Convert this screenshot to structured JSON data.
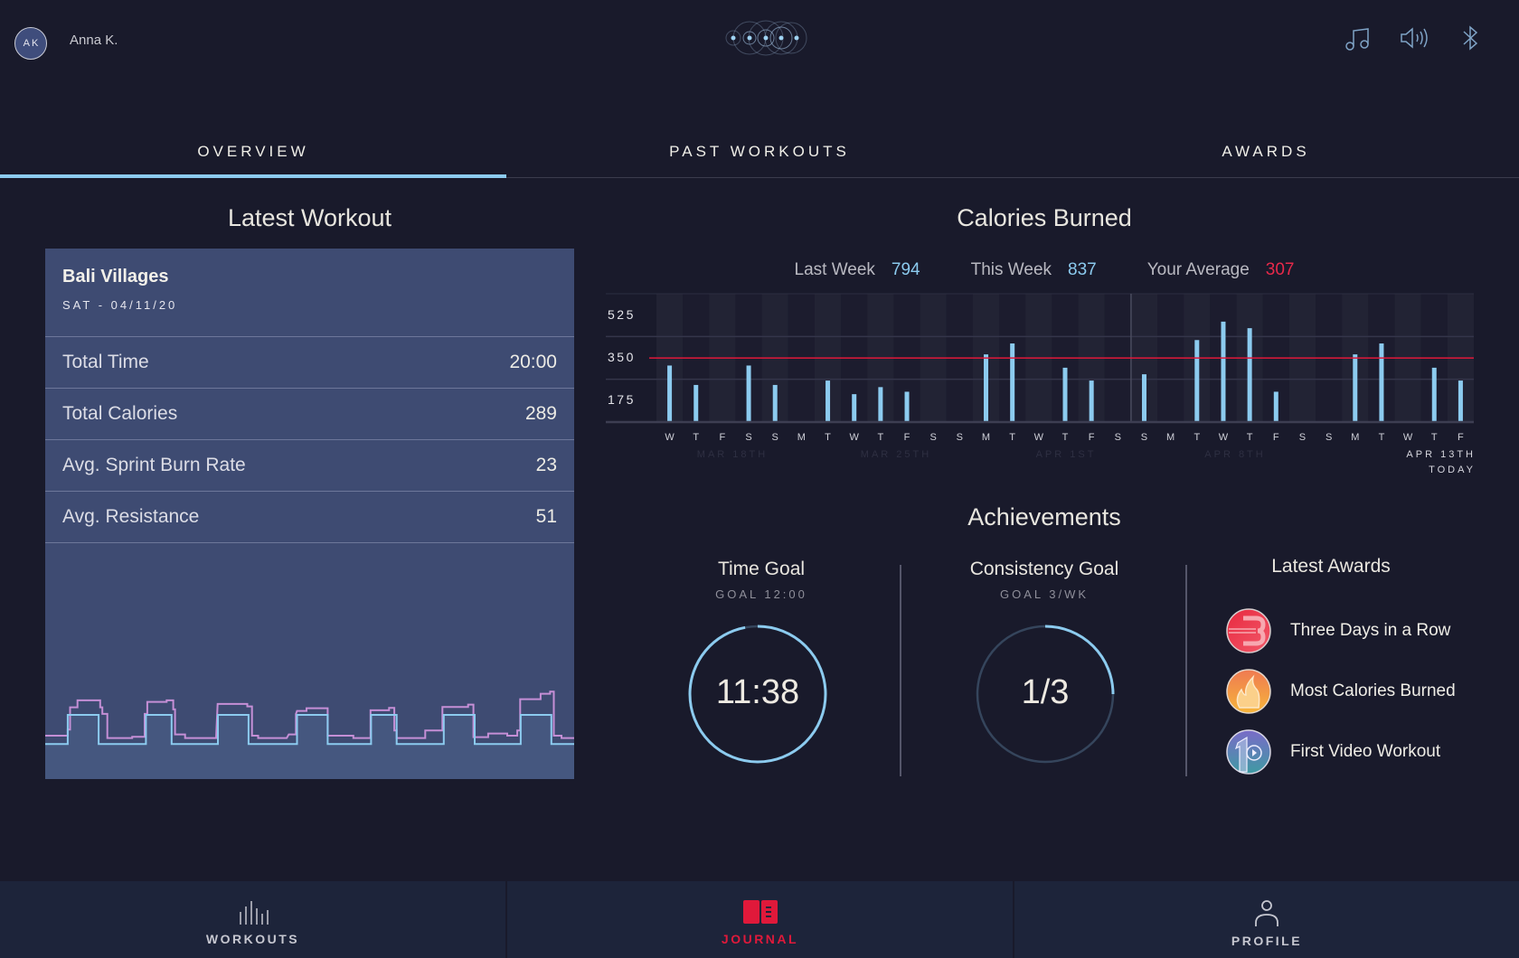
{
  "header": {
    "avatar_initials": "AK",
    "user_name": "Anna K.",
    "icons": [
      "logo-icon",
      "music-icon",
      "volume-icon",
      "bluetooth-icon"
    ]
  },
  "tabs": [
    {
      "label": "OVERVIEW",
      "active": true
    },
    {
      "label": "PAST WORKOUTS",
      "active": false
    },
    {
      "label": "AWARDS",
      "active": false
    }
  ],
  "latest_workout": {
    "title": "Latest Workout",
    "name": "Bali Villages",
    "date": "SAT - 04/11/20",
    "rows": [
      {
        "label": "Total Time",
        "value": "20:00"
      },
      {
        "label": "Total Calories",
        "value": "289"
      },
      {
        "label": "Avg. Sprint Burn Rate",
        "value": "23"
      },
      {
        "label": "Avg. Resistance",
        "value": "51"
      }
    ]
  },
  "calories": {
    "title": "Calories Burned",
    "stats": [
      {
        "label": "Last Week",
        "value": "794",
        "color": "#8ccbef"
      },
      {
        "label": "This Week",
        "value": "837",
        "color": "#8ccbef"
      },
      {
        "label": "Your Average",
        "value": "307",
        "color": "#e8294a"
      }
    ],
    "week_labels": [
      "MAR 18TH",
      "MAR 25TH",
      "APR 1ST",
      "APR 8TH",
      "APR 13TH"
    ],
    "today_label": "TODAY"
  },
  "chart_data": [
    {
      "type": "bar",
      "categories": [
        "W",
        "T",
        "F",
        "S",
        "S",
        "M",
        "T",
        "W",
        "T",
        "F",
        "S",
        "S",
        "M",
        "T",
        "W",
        "T",
        "F",
        "S",
        "S",
        "M",
        "T",
        "W",
        "T",
        "F",
        "S",
        "S",
        "M",
        "T",
        "W",
        "T",
        "F"
      ],
      "values": [
        315,
        235,
        null,
        315,
        235,
        null,
        253,
        197,
        226,
        207,
        null,
        null,
        361,
        406,
        null,
        306,
        253,
        null,
        279,
        null,
        420,
        496,
        469,
        207,
        null,
        null,
        361,
        406,
        null,
        306,
        253
      ],
      "y_ticks": [
        175,
        350,
        525
      ],
      "ylim": [
        82,
        611
      ],
      "reference_line": 346,
      "bar_color": "#8ccbef",
      "reference_color": "#e0193a",
      "grid": true
    },
    {
      "type": "line",
      "x_range": [
        0,
        20
      ],
      "series": [
        {
          "color": "#8ccbef",
          "intervals_high": [
            [
              0.85,
              2.02
            ],
            [
              3.81,
              4.78
            ],
            [
              6.53,
              7.69
            ],
            [
              9.52,
              10.68
            ],
            [
              12.32,
              13.29
            ],
            [
              15.07,
              16.24
            ],
            [
              17.98,
              19.14
            ]
          ],
          "low": 0,
          "high": 48.5
        },
        {
          "color": "#c58fd6",
          "points": [
            [
              0,
              14
            ],
            [
              0.85,
              14
            ],
            [
              0.85,
              24
            ],
            [
              0.94,
              24
            ],
            [
              0.94,
              61
            ],
            [
              1.22,
              61
            ],
            [
              1.22,
              72.5
            ],
            [
              2.08,
              72.5
            ],
            [
              2.08,
              61
            ],
            [
              2.16,
              61
            ],
            [
              2.16,
              50
            ],
            [
              2.35,
              50
            ],
            [
              2.35,
              10
            ],
            [
              3.29,
              10
            ],
            [
              3.29,
              12
            ],
            [
              3.76,
              12
            ],
            [
              3.76,
              50
            ],
            [
              3.86,
              50
            ],
            [
              3.86,
              70
            ],
            [
              4.59,
              70
            ],
            [
              4.59,
              72.5
            ],
            [
              4.84,
              72.5
            ],
            [
              4.84,
              57.5
            ],
            [
              4.91,
              57.5
            ],
            [
              4.91,
              16
            ],
            [
              5.29,
              16
            ],
            [
              5.29,
              10
            ],
            [
              6.46,
              10
            ],
            [
              6.52,
              66.5
            ],
            [
              7.64,
              66.5
            ],
            [
              7.64,
              62.5
            ],
            [
              7.82,
              62.5
            ],
            [
              7.82,
              14
            ],
            [
              8.05,
              14
            ],
            [
              8.05,
              10
            ],
            [
              9.13,
              10
            ],
            [
              9.21,
              16
            ],
            [
              9.48,
              16
            ],
            [
              9.48,
              50
            ],
            [
              9.52,
              55
            ],
            [
              9.88,
              55
            ],
            [
              9.88,
              59.5
            ],
            [
              10.68,
              59.5
            ],
            [
              10.68,
              14
            ],
            [
              11.65,
              14
            ],
            [
              11.65,
              10
            ],
            [
              12.3,
              10
            ],
            [
              12.3,
              56
            ],
            [
              13.0,
              56
            ],
            [
              13.0,
              60
            ],
            [
              13.2,
              60
            ],
            [
              13.2,
              22.5
            ],
            [
              13.29,
              22.5
            ],
            [
              13.29,
              10
            ],
            [
              14.37,
              10
            ],
            [
              14.37,
              22.5
            ],
            [
              15.02,
              22.5
            ],
            [
              15.02,
              61.5
            ],
            [
              15.99,
              61.5
            ],
            [
              15.99,
              65.5
            ],
            [
              16.19,
              65.5
            ],
            [
              16.19,
              11.5
            ],
            [
              16.75,
              11.5
            ],
            [
              16.75,
              17.5
            ],
            [
              17.47,
              17.5
            ],
            [
              17.47,
              14
            ],
            [
              17.85,
              14
            ],
            [
              17.85,
              22.5
            ],
            [
              17.96,
              22.5
            ],
            [
              17.96,
              74.5
            ],
            [
              18.73,
              74.5
            ],
            [
              18.73,
              83.5
            ],
            [
              19.09,
              83.5
            ],
            [
              19.09,
              87
            ],
            [
              19.23,
              87
            ],
            [
              19.23,
              14
            ],
            [
              19.52,
              14
            ],
            [
              19.52,
              10
            ],
            [
              20,
              10
            ]
          ]
        }
      ]
    }
  ],
  "achievements": {
    "title": "Achievements",
    "time_goal": {
      "title": "Time Goal",
      "goal": "GOAL 12:00",
      "value": "11:38",
      "progress": 0.97
    },
    "consistency_goal": {
      "title": "Consistency Goal",
      "goal": "GOAL 3/WK",
      "value": "1/3",
      "progress": 0.25
    },
    "awards_title": "Latest Awards",
    "awards": [
      {
        "label": "Three Days in a Row",
        "icon": "three-days-award-icon"
      },
      {
        "label": "Most Calories Burned",
        "icon": "flame-award-icon"
      },
      {
        "label": "First Video Workout",
        "icon": "first-video-award-icon"
      }
    ]
  },
  "bottom_nav": [
    {
      "label": "WORKOUTS",
      "icon": "bars-icon",
      "active": false
    },
    {
      "label": "JOURNAL",
      "icon": "journal-icon",
      "active": true
    },
    {
      "label": "PROFILE",
      "icon": "person-icon",
      "active": false
    }
  ],
  "colors": {
    "accent": "#8ccbef",
    "alert": "#e0193a",
    "card": "#3e4b72",
    "background": "#191a2b"
  }
}
